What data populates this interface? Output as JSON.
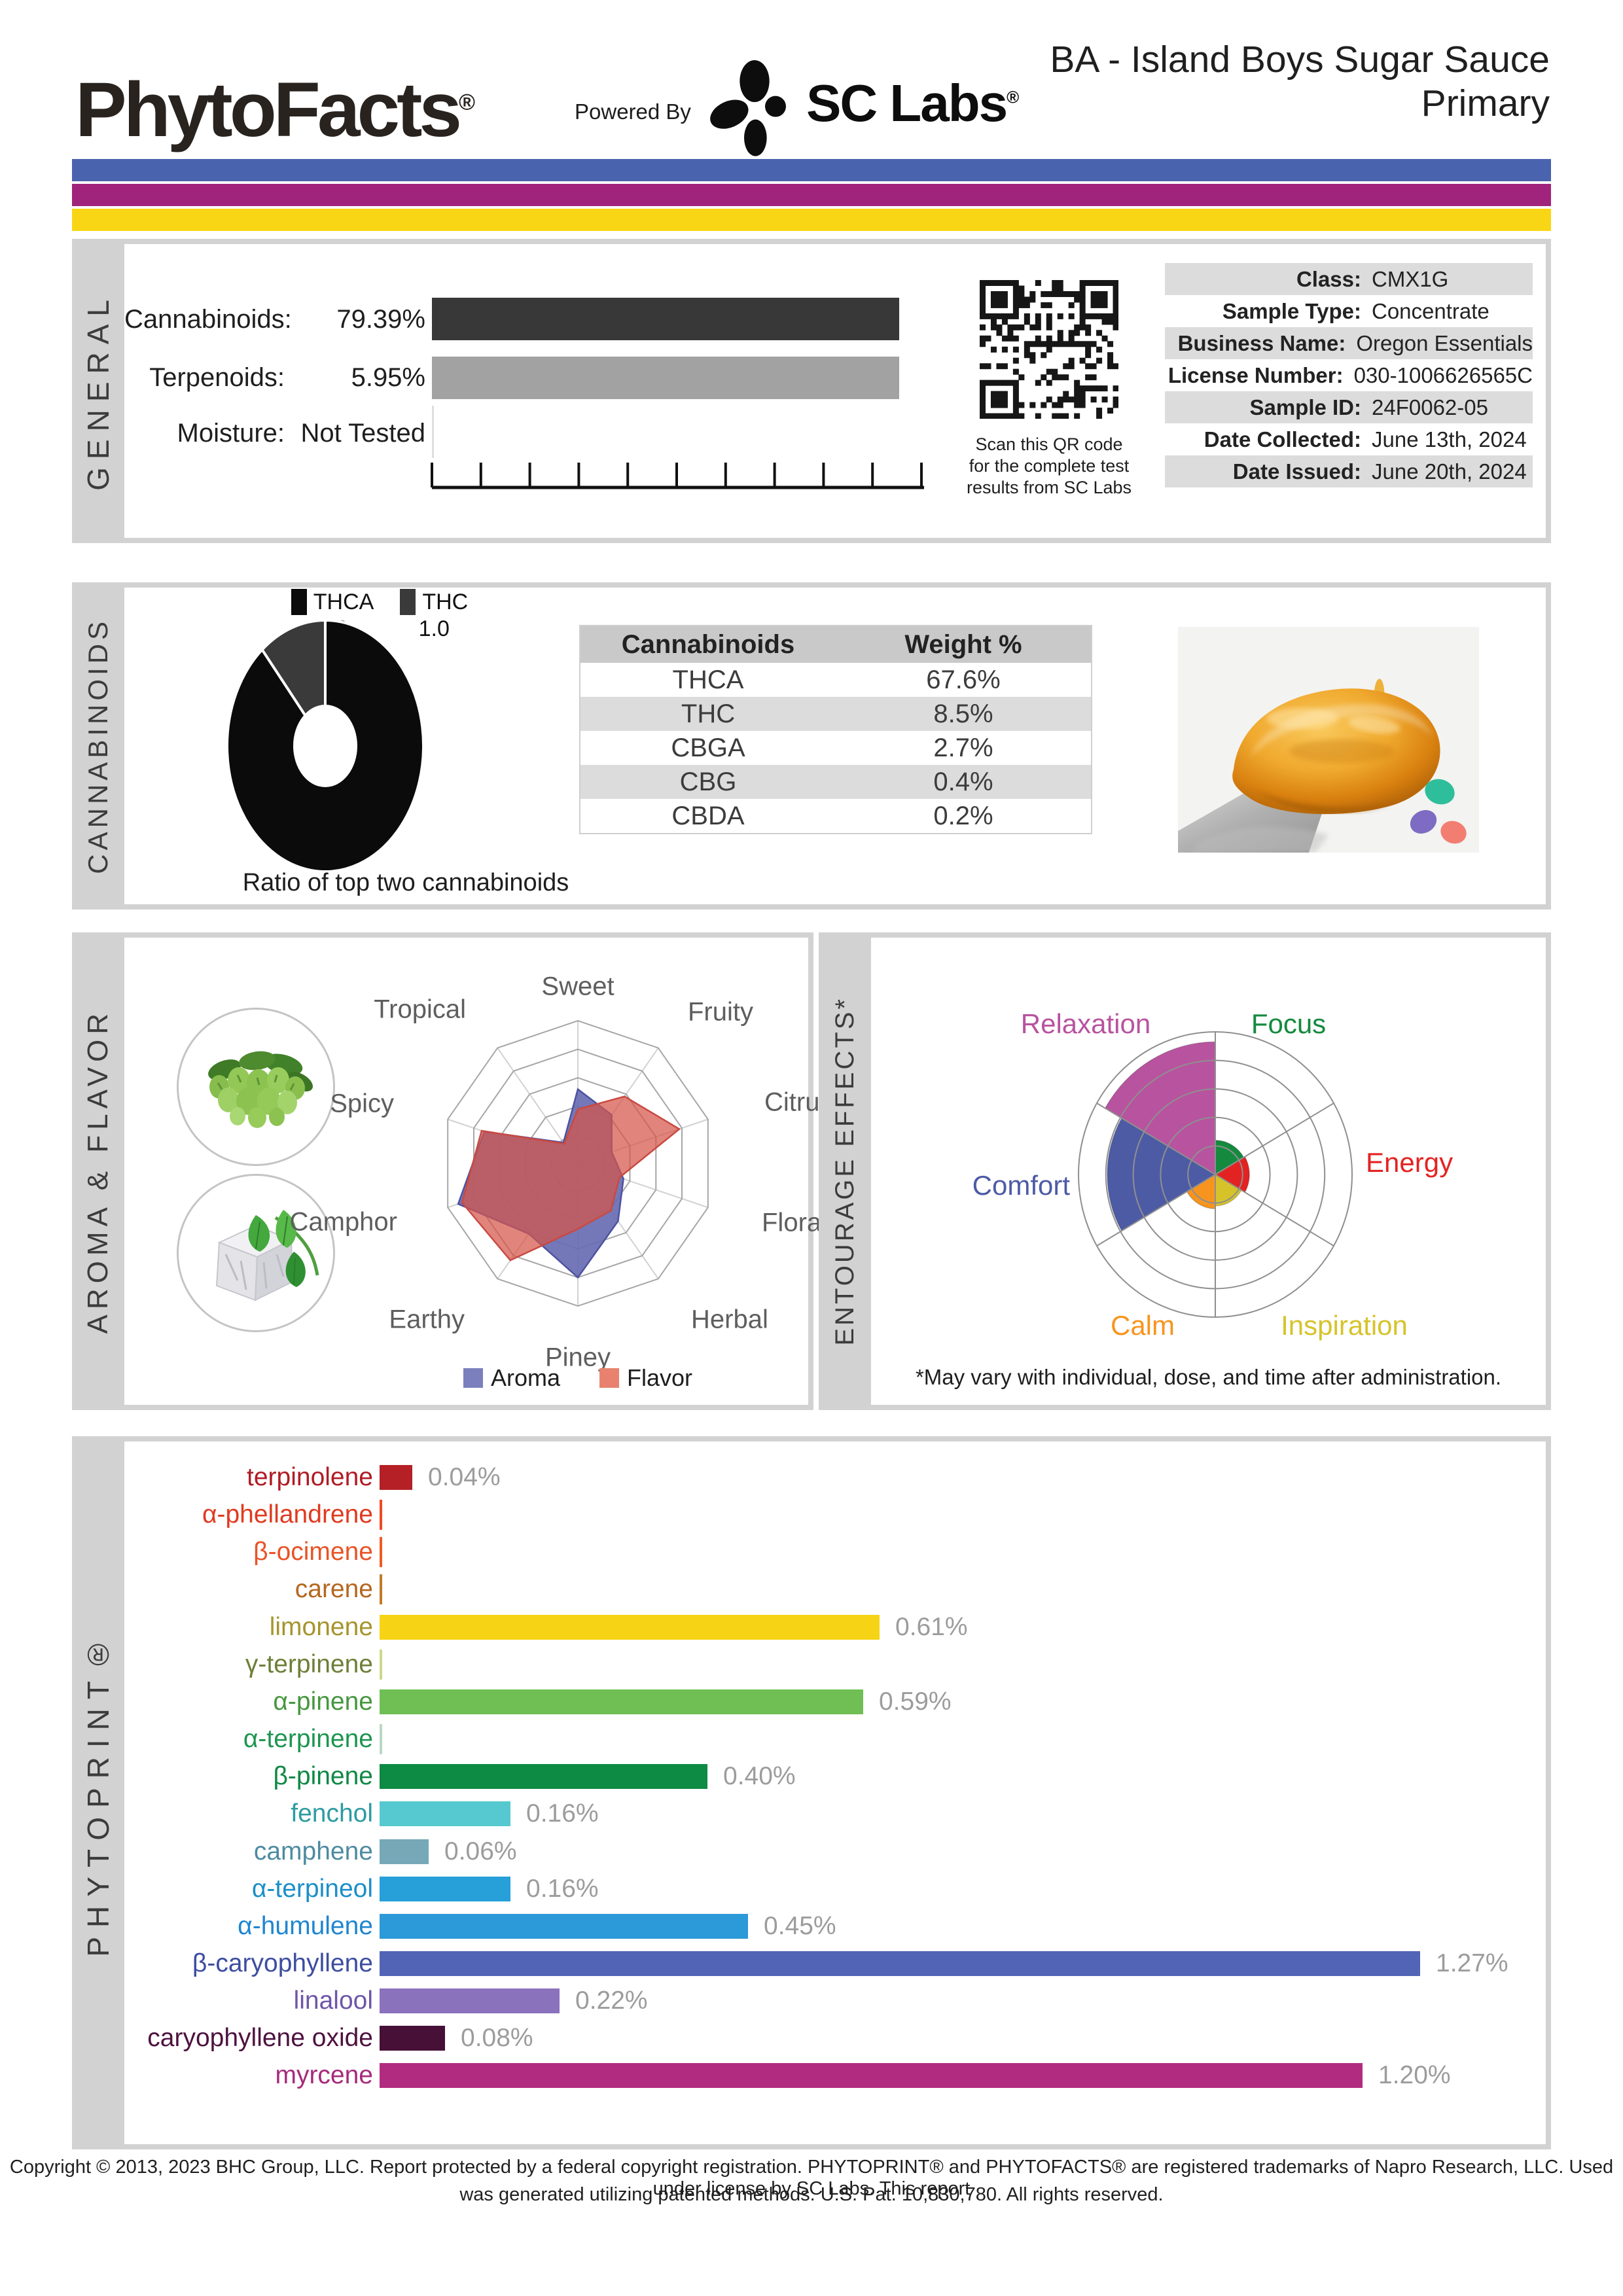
{
  "header": {
    "brand": "PhytoFacts",
    "reg_mark": "®",
    "powered_by": "Powered By",
    "lab_name": "SC Labs",
    "title_line1": "BA - Island Boys Sugar Sauce",
    "title_line2": "Primary",
    "stripe_colors": [
      "#4a63ae",
      "#a1247c",
      "#f9d615"
    ]
  },
  "general": {
    "section_label": "GENERAL",
    "stats": [
      {
        "label": "Cannabinoids:",
        "value": "79.39%"
      },
      {
        "label": "Terpenoids:",
        "value": "5.95%"
      },
      {
        "label": "Moisture:",
        "value": "Not Tested"
      }
    ],
    "qr_caption_lines": [
      "Scan this QR code",
      "for the complete test",
      "results from SC Labs"
    ],
    "info_rows": [
      {
        "label": "Class:",
        "value": "CMX1G"
      },
      {
        "label": "Sample Type:",
        "value": "Concentrate"
      },
      {
        "label": "Business Name:",
        "value": "Oregon Essentials"
      },
      {
        "label": "License Number:",
        "value": "030-1006626565C"
      },
      {
        "label": "Sample ID:",
        "value": "24F0062-05"
      },
      {
        "label": "Date Collected:",
        "value": "June 13th, 2024"
      },
      {
        "label": "Date Issued:",
        "value": "June 20th, 2024"
      }
    ]
  },
  "cannabinoids_section": {
    "section_label": "CANNABINOIDS",
    "donut_caption": "Ratio of top two cannabinoids"
  },
  "aroma_section": {
    "section_label": "AROMA & FLAVOR"
  },
  "entourage_section": {
    "section_label": "ENTOURAGE EFFECTS*",
    "footnote": "*May vary with individual, dose, and time after administration."
  },
  "phytoprint_section": {
    "section_label": "PHYTOPRINT®"
  },
  "footer": {
    "line1": "Copyright © 2013, 2023 BHC Group, LLC. Report protected by a federal copyright registration. PHYTOPRINT® and PHYTOFACTS® are registered trademarks of Napro Research, LLC. Used under license by SC Labs. This report",
    "line2": "was generated utilizing patented methods. U.S. Pat. 10,830,780. All rights reserved."
  },
  "chart_data": [
    {
      "id": "general_totals",
      "type": "bar",
      "categories": [
        "Cannabinoids",
        "Terpenoids",
        "Moisture"
      ],
      "values": [
        79.39,
        5.95,
        null
      ],
      "value_labels": [
        "79.39%",
        "5.95%",
        "Not Tested"
      ],
      "xlim": [
        0,
        100
      ],
      "axis_tick_count": 11,
      "bar_colors": [
        "#383838",
        "#a2a2a2"
      ],
      "note": "both bars render equal near-full length in source image"
    },
    {
      "id": "cannabinoid_ratio",
      "type": "pie",
      "donut": true,
      "title": "Ratio of top two cannabinoids",
      "labels": [
        "THCA",
        "THC"
      ],
      "values": [
        8.0,
        1.0
      ],
      "display_values": [
        "8.0",
        "1.0"
      ],
      "colors": [
        "#0b0b0b",
        "#3a3a3a"
      ]
    },
    {
      "id": "cannabinoid_table",
      "type": "table",
      "columns": [
        "Cannabinoids",
        "Weight %"
      ],
      "rows": [
        [
          "THCA",
          "67.6%"
        ],
        [
          "THC",
          "8.5%"
        ],
        [
          "CBGA",
          "2.7%"
        ],
        [
          "CBG",
          "0.4%"
        ],
        [
          "CBDA",
          "0.2%"
        ]
      ]
    },
    {
      "id": "aroma_flavor_radar",
      "type": "radar",
      "axes": [
        "Sweet",
        "Fruity",
        "Citrusy",
        "Floral",
        "Herbal",
        "Piney",
        "Earthy",
        "Camphor",
        "Spicy",
        "Tropical"
      ],
      "scale_max": 5,
      "rings": 5,
      "series": [
        {
          "name": "Aroma",
          "color": "#7b80bd",
          "fill": "rgba(104,109,178,0.92)",
          "stroke": "#4d52a0",
          "values": [
            2.6,
            2.1,
            1.3,
            1.75,
            2.5,
            4.0,
            3.05,
            4.6,
            3.6,
            0.9
          ]
        },
        {
          "name": "Flavor",
          "color": "#e8826e",
          "fill": "rgba(213,84,72,0.72)",
          "stroke": "#c84a42",
          "values": [
            1.9,
            2.9,
            3.9,
            1.6,
            2.05,
            2.3,
            4.2,
            4.45,
            3.7,
            0.85
          ]
        }
      ]
    },
    {
      "id": "entourage_effects",
      "type": "polar",
      "scale_max": 5,
      "rings": 5,
      "sectors": [
        {
          "label": "Focus",
          "value": 1.2,
          "color": "#148a3e"
        },
        {
          "label": "Energy",
          "value": 1.25,
          "color": "#e32322"
        },
        {
          "label": "Inspiration",
          "value": 1.1,
          "color": "#d6c32a"
        },
        {
          "label": "Calm",
          "value": 1.2,
          "color": "#f7941e"
        },
        {
          "label": "Comfort",
          "value": 3.95,
          "color": "#4d5ba5"
        },
        {
          "label": "Relaxation",
          "value": 4.65,
          "color": "#b8539f"
        }
      ]
    },
    {
      "id": "phytoprint_terpenes",
      "type": "bar",
      "unit": "%",
      "items": [
        {
          "name": "terpinolene",
          "value": 0.04,
          "display": "0.04%",
          "label_color": "#b01c24",
          "bar_color": "#b42025"
        },
        {
          "name": "α-phellandrene",
          "value": null,
          "display": "",
          "label_color": "#e03a20",
          "bar_color": "#f04a20"
        },
        {
          "name": "β-ocimene",
          "value": null,
          "display": "",
          "label_color": "#e85426",
          "bar_color": "#f05a24"
        },
        {
          "name": "carene",
          "value": null,
          "display": "",
          "label_color": "#b4671f",
          "bar_color": "#c27b28"
        },
        {
          "name": "limonene",
          "value": 0.61,
          "display": "0.61%",
          "label_color": "#a5952d",
          "bar_color": "#f6d415"
        },
        {
          "name": "γ-terpinene",
          "value": null,
          "display": "",
          "label_color": "#6d7f37",
          "bar_color": "#ccd98a"
        },
        {
          "name": "α-pinene",
          "value": 0.59,
          "display": "0.59%",
          "label_color": "#46973f",
          "bar_color": "#6fbf54"
        },
        {
          "name": "α-terpinene",
          "value": null,
          "display": "",
          "label_color": "#1d9550",
          "bar_color": "#b9d8c2"
        },
        {
          "name": "β-pinene",
          "value": 0.4,
          "display": "0.40%",
          "label_color": "#0f8845",
          "bar_color": "#0d8a43"
        },
        {
          "name": "fenchol",
          "value": 0.16,
          "display": "0.16%",
          "label_color": "#2d9ba1",
          "bar_color": "#55c9cf"
        },
        {
          "name": "camphene",
          "value": 0.06,
          "display": "0.06%",
          "label_color": "#4e8ba1",
          "bar_color": "#76a8b7"
        },
        {
          "name": "α-terpineol",
          "value": 0.16,
          "display": "0.16%",
          "label_color": "#1b8fc9",
          "bar_color": "#27a0d9"
        },
        {
          "name": "α-humulene",
          "value": 0.45,
          "display": "0.45%",
          "label_color": "#1f86cf",
          "bar_color": "#2c99d8"
        },
        {
          "name": "β-caryophyllene",
          "value": 1.27,
          "display": "1.27%",
          "label_color": "#3d4da0",
          "bar_color": "#5264b5"
        },
        {
          "name": "linalool",
          "value": 0.22,
          "display": "0.22%",
          "label_color": "#6f55a9",
          "bar_color": "#8b72bd"
        },
        {
          "name": "caryophyllene oxide",
          "value": 0.08,
          "display": "0.08%",
          "label_color": "#4e1240",
          "bar_color": "#471037"
        },
        {
          "name": "myrcene",
          "value": 1.2,
          "display": "1.20%",
          "label_color": "#a62a7b",
          "bar_color": "#b12c80"
        }
      ]
    }
  ]
}
